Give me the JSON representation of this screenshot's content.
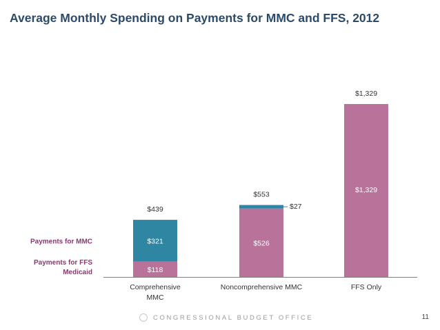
{
  "title_prefix": "Average Monthly Spending on Payments for MMC and ",
  "title_highlight": "FFS",
  "title_suffix": ", 2012",
  "footer": "CONGRESSIONAL BUDGET OFFICE",
  "page_number": "11",
  "colors": {
    "mmc": "#2e86a3",
    "ffs": "#b9739b",
    "legend_text": "#8a3a6e",
    "axis": "#7f7f7f"
  },
  "chart_data": {
    "type": "bar",
    "stacked": true,
    "title": "Average Monthly Spending on Payments for MMC and FFS, 2012",
    "categories": [
      [
        "Comprehensive",
        "MMC"
      ],
      [
        "Noncomprehensive MMC"
      ],
      [
        "FFS Only"
      ]
    ],
    "series": [
      {
        "name": "Payments for FFS Medicaid",
        "legend_lines": [
          "Payments for FFS",
          "Medicaid"
        ],
        "values": [
          118,
          526,
          1329
        ],
        "labels": [
          "$118",
          "$526",
          "$1,329"
        ]
      },
      {
        "name": "Payments for MMC",
        "legend_lines": [
          "Payments for MMC"
        ],
        "values": [
          321,
          27,
          0
        ],
        "labels": [
          "$321",
          "$27",
          ""
        ]
      }
    ],
    "totals": [
      439,
      553,
      1329
    ],
    "total_labels": [
      "$439",
      "$553",
      "$1,329"
    ],
    "ylim": [
      0,
      1329
    ]
  }
}
